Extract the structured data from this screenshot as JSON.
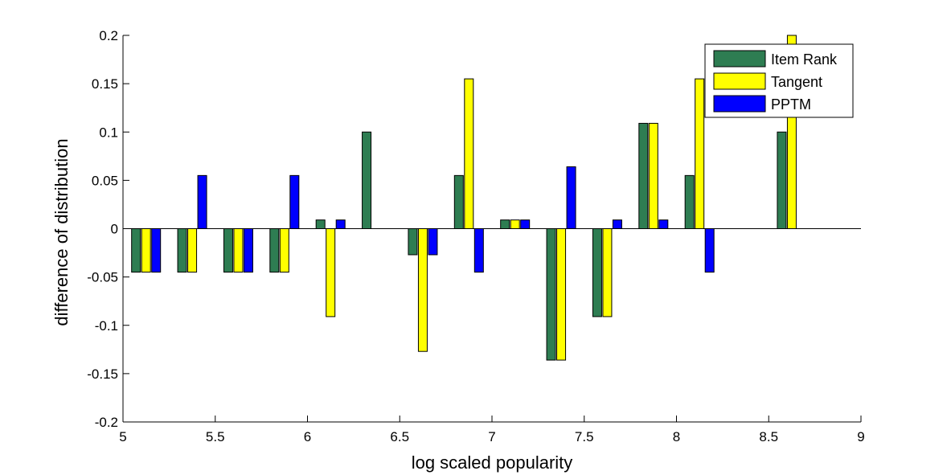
{
  "chart_data": {
    "type": "bar",
    "title": "",
    "xlabel": "log scaled popularity",
    "ylabel": "difference of distribution",
    "xlim": [
      5,
      9
    ],
    "ylim": [
      -0.2,
      0.2
    ],
    "x_ticks": [
      "5",
      "5.5",
      "6",
      "6.5",
      "7",
      "7.5",
      "8",
      "8.5",
      "9"
    ],
    "y_ticks": [
      "-0.2",
      "-0.15",
      "-0.1",
      "-0.05",
      "0",
      "0.05",
      "0.1",
      "0.15",
      "0.2"
    ],
    "grid": false,
    "legend_position": "top-right",
    "x": [
      5.125,
      5.375,
      5.625,
      5.875,
      6.125,
      6.375,
      6.625,
      6.875,
      7.125,
      7.375,
      7.625,
      7.875,
      8.125,
      8.375,
      8.625
    ],
    "series": [
      {
        "name": "Item Rank",
        "color": "#2e7d52",
        "values": [
          -0.045,
          -0.045,
          -0.045,
          -0.045,
          0.009,
          0.1,
          -0.027,
          0.055,
          0.009,
          -0.136,
          -0.091,
          0.109,
          0.055,
          0,
          0.1
        ]
      },
      {
        "name": "Tangent",
        "color": "#ffff00",
        "values": [
          -0.045,
          -0.045,
          -0.045,
          -0.045,
          -0.091,
          0,
          -0.127,
          0.155,
          0.009,
          -0.136,
          -0.091,
          0.109,
          0.155,
          0,
          0.2
        ]
      },
      {
        "name": "PPTM",
        "color": "#0000ff",
        "values": [
          -0.045,
          0.055,
          -0.045,
          0.055,
          0.009,
          0,
          -0.027,
          -0.045,
          0.009,
          0.064,
          0.009,
          0.009,
          -0.045,
          0,
          0
        ]
      }
    ]
  }
}
